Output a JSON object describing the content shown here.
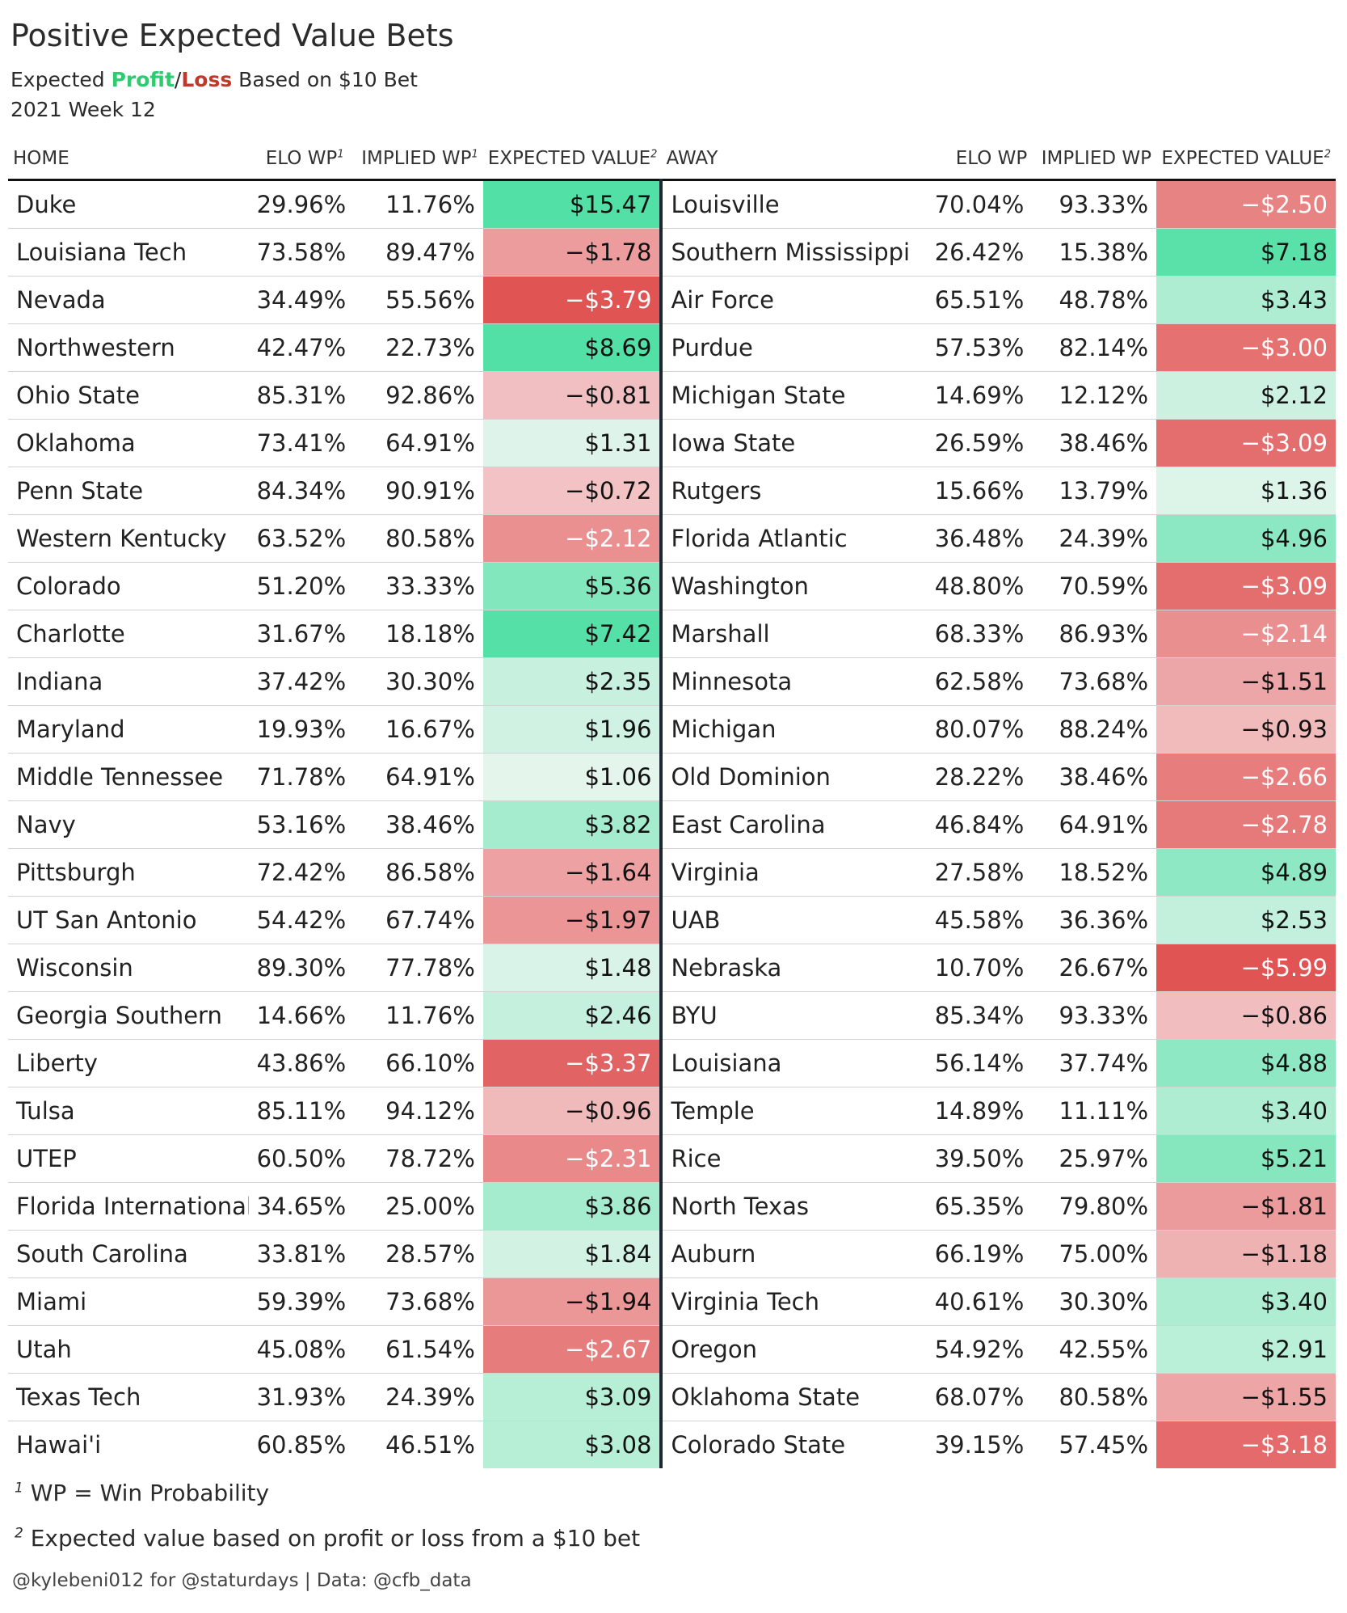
{
  "title": "Positive Expected Value Bets",
  "subtitle": {
    "prefix": "Expected ",
    "profit": "Profit",
    "slash": "/",
    "loss": "Loss",
    "suffix": " Based on $10 Bet"
  },
  "week": "2021 Week 12",
  "colors": {
    "profit": "#2ecc71",
    "loss": "#c0392b",
    "positive_max": "#52e0a6",
    "negative_max": "#e05a5a"
  },
  "headers": {
    "home": "HOME",
    "home_elo": "ELO WP",
    "home_elo_sup": "1",
    "home_implied": "IMPLIED WP",
    "home_implied_sup": "1",
    "home_ev": "EXPECTED VALUE",
    "home_ev_sup": "2",
    "away": "AWAY",
    "away_elo": "ELO WP",
    "away_implied": "IMPLIED WP",
    "away_ev": "EXPECTED VALUE",
    "away_ev_sup": "2"
  },
  "rows": [
    {
      "home": "Duke",
      "home_elo": "29.96%",
      "home_implied": "11.76%",
      "home_ev": "$15.47",
      "home_ev_value": 15.47,
      "away": "Louisville",
      "away_elo": "70.04%",
      "away_implied": "93.33%",
      "away_ev": "−$2.50",
      "away_ev_value": -2.5
    },
    {
      "home": "Louisiana Tech",
      "home_elo": "73.58%",
      "home_implied": "89.47%",
      "home_ev": "−$1.78",
      "home_ev_value": -1.78,
      "away": "Southern Mississippi",
      "away_elo": "26.42%",
      "away_implied": "15.38%",
      "away_ev": "$7.18",
      "away_ev_value": 7.18
    },
    {
      "home": "Nevada",
      "home_elo": "34.49%",
      "home_implied": "55.56%",
      "home_ev": "−$3.79",
      "home_ev_value": -3.79,
      "away": "Air Force",
      "away_elo": "65.51%",
      "away_implied": "48.78%",
      "away_ev": "$3.43",
      "away_ev_value": 3.43
    },
    {
      "home": "Northwestern",
      "home_elo": "42.47%",
      "home_implied": "22.73%",
      "home_ev": "$8.69",
      "home_ev_value": 8.69,
      "away": "Purdue",
      "away_elo": "57.53%",
      "away_implied": "82.14%",
      "away_ev": "−$3.00",
      "away_ev_value": -3.0
    },
    {
      "home": "Ohio State",
      "home_elo": "85.31%",
      "home_implied": "92.86%",
      "home_ev": "−$0.81",
      "home_ev_value": -0.81,
      "away": "Michigan State",
      "away_elo": "14.69%",
      "away_implied": "12.12%",
      "away_ev": "$2.12",
      "away_ev_value": 2.12
    },
    {
      "home": "Oklahoma",
      "home_elo": "73.41%",
      "home_implied": "64.91%",
      "home_ev": "$1.31",
      "home_ev_value": 1.31,
      "away": "Iowa State",
      "away_elo": "26.59%",
      "away_implied": "38.46%",
      "away_ev": "−$3.09",
      "away_ev_value": -3.09
    },
    {
      "home": "Penn State",
      "home_elo": "84.34%",
      "home_implied": "90.91%",
      "home_ev": "−$0.72",
      "home_ev_value": -0.72,
      "away": "Rutgers",
      "away_elo": "15.66%",
      "away_implied": "13.79%",
      "away_ev": "$1.36",
      "away_ev_value": 1.36
    },
    {
      "home": "Western Kentucky",
      "home_elo": "63.52%",
      "home_implied": "80.58%",
      "home_ev": "−$2.12",
      "home_ev_value": -2.12,
      "away": "Florida Atlantic",
      "away_elo": "36.48%",
      "away_implied": "24.39%",
      "away_ev": "$4.96",
      "away_ev_value": 4.96
    },
    {
      "home": "Colorado",
      "home_elo": "51.20%",
      "home_implied": "33.33%",
      "home_ev": "$5.36",
      "home_ev_value": 5.36,
      "away": "Washington",
      "away_elo": "48.80%",
      "away_implied": "70.59%",
      "away_ev": "−$3.09",
      "away_ev_value": -3.09
    },
    {
      "home": "Charlotte",
      "home_elo": "31.67%",
      "home_implied": "18.18%",
      "home_ev": "$7.42",
      "home_ev_value": 7.42,
      "away": "Marshall",
      "away_elo": "68.33%",
      "away_implied": "86.93%",
      "away_ev": "−$2.14",
      "away_ev_value": -2.14
    },
    {
      "home": "Indiana",
      "home_elo": "37.42%",
      "home_implied": "30.30%",
      "home_ev": "$2.35",
      "home_ev_value": 2.35,
      "away": "Minnesota",
      "away_elo": "62.58%",
      "away_implied": "73.68%",
      "away_ev": "−$1.51",
      "away_ev_value": -1.51
    },
    {
      "home": "Maryland",
      "home_elo": "19.93%",
      "home_implied": "16.67%",
      "home_ev": "$1.96",
      "home_ev_value": 1.96,
      "away": "Michigan",
      "away_elo": "80.07%",
      "away_implied": "88.24%",
      "away_ev": "−$0.93",
      "away_ev_value": -0.93
    },
    {
      "home": "Middle Tennessee",
      "home_elo": "71.78%",
      "home_implied": "64.91%",
      "home_ev": "$1.06",
      "home_ev_value": 1.06,
      "away": "Old Dominion",
      "away_elo": "28.22%",
      "away_implied": "38.46%",
      "away_ev": "−$2.66",
      "away_ev_value": -2.66
    },
    {
      "home": "Navy",
      "home_elo": "53.16%",
      "home_implied": "38.46%",
      "home_ev": "$3.82",
      "home_ev_value": 3.82,
      "away": "East Carolina",
      "away_elo": "46.84%",
      "away_implied": "64.91%",
      "away_ev": "−$2.78",
      "away_ev_value": -2.78
    },
    {
      "home": "Pittsburgh",
      "home_elo": "72.42%",
      "home_implied": "86.58%",
      "home_ev": "−$1.64",
      "home_ev_value": -1.64,
      "away": "Virginia",
      "away_elo": "27.58%",
      "away_implied": "18.52%",
      "away_ev": "$4.89",
      "away_ev_value": 4.89
    },
    {
      "home": "UT San Antonio",
      "home_elo": "54.42%",
      "home_implied": "67.74%",
      "home_ev": "−$1.97",
      "home_ev_value": -1.97,
      "away": "UAB",
      "away_elo": "45.58%",
      "away_implied": "36.36%",
      "away_ev": "$2.53",
      "away_ev_value": 2.53
    },
    {
      "home": "Wisconsin",
      "home_elo": "89.30%",
      "home_implied": "77.78%",
      "home_ev": "$1.48",
      "home_ev_value": 1.48,
      "away": "Nebraska",
      "away_elo": "10.70%",
      "away_implied": "26.67%",
      "away_ev": "−$5.99",
      "away_ev_value": -5.99
    },
    {
      "home": "Georgia Southern",
      "home_elo": "14.66%",
      "home_implied": "11.76%",
      "home_ev": "$2.46",
      "home_ev_value": 2.46,
      "away": "BYU",
      "away_elo": "85.34%",
      "away_implied": "93.33%",
      "away_ev": "−$0.86",
      "away_ev_value": -0.86
    },
    {
      "home": "Liberty",
      "home_elo": "43.86%",
      "home_implied": "66.10%",
      "home_ev": "−$3.37",
      "home_ev_value": -3.37,
      "away": "Louisiana",
      "away_elo": "56.14%",
      "away_implied": "37.74%",
      "away_ev": "$4.88",
      "away_ev_value": 4.88
    },
    {
      "home": "Tulsa",
      "home_elo": "85.11%",
      "home_implied": "94.12%",
      "home_ev": "−$0.96",
      "home_ev_value": -0.96,
      "away": "Temple",
      "away_elo": "14.89%",
      "away_implied": "11.11%",
      "away_ev": "$3.40",
      "away_ev_value": 3.4
    },
    {
      "home": "UTEP",
      "home_elo": "60.50%",
      "home_implied": "78.72%",
      "home_ev": "−$2.31",
      "home_ev_value": -2.31,
      "away": "Rice",
      "away_elo": "39.50%",
      "away_implied": "25.97%",
      "away_ev": "$5.21",
      "away_ev_value": 5.21
    },
    {
      "home": "Florida International",
      "home_elo": "34.65%",
      "home_implied": "25.00%",
      "home_ev": "$3.86",
      "home_ev_value": 3.86,
      "away": "North Texas",
      "away_elo": "65.35%",
      "away_implied": "79.80%",
      "away_ev": "−$1.81",
      "away_ev_value": -1.81
    },
    {
      "home": "South Carolina",
      "home_elo": "33.81%",
      "home_implied": "28.57%",
      "home_ev": "$1.84",
      "home_ev_value": 1.84,
      "away": "Auburn",
      "away_elo": "66.19%",
      "away_implied": "75.00%",
      "away_ev": "−$1.18",
      "away_ev_value": -1.18
    },
    {
      "home": "Miami",
      "home_elo": "59.39%",
      "home_implied": "73.68%",
      "home_ev": "−$1.94",
      "home_ev_value": -1.94,
      "away": "Virginia Tech",
      "away_elo": "40.61%",
      "away_implied": "30.30%",
      "away_ev": "$3.40",
      "away_ev_value": 3.4
    },
    {
      "home": "Utah",
      "home_elo": "45.08%",
      "home_implied": "61.54%",
      "home_ev": "−$2.67",
      "home_ev_value": -2.67,
      "away": "Oregon",
      "away_elo": "54.92%",
      "away_implied": "42.55%",
      "away_ev": "$2.91",
      "away_ev_value": 2.91
    },
    {
      "home": "Texas Tech",
      "home_elo": "31.93%",
      "home_implied": "24.39%",
      "home_ev": "$3.09",
      "home_ev_value": 3.09,
      "away": "Oklahoma State",
      "away_elo": "68.07%",
      "away_implied": "80.58%",
      "away_ev": "−$1.55",
      "away_ev_value": -1.55
    },
    {
      "home": "Hawai'i",
      "home_elo": "60.85%",
      "home_implied": "46.51%",
      "home_ev": "$3.08",
      "home_ev_value": 3.08,
      "away": "Colorado State",
      "away_elo": "39.15%",
      "away_implied": "57.45%",
      "away_ev": "−$3.18",
      "away_ev_value": -3.18
    }
  ],
  "footnotes": {
    "fn1_mark": "1",
    "fn1_text": "WP = Win Probability",
    "fn2_mark": "2",
    "fn2_text": "Expected value based on profit or loss from a $10 bet"
  },
  "credit": "@kylebeni012 for @staturdays | Data: @cfb_data"
}
